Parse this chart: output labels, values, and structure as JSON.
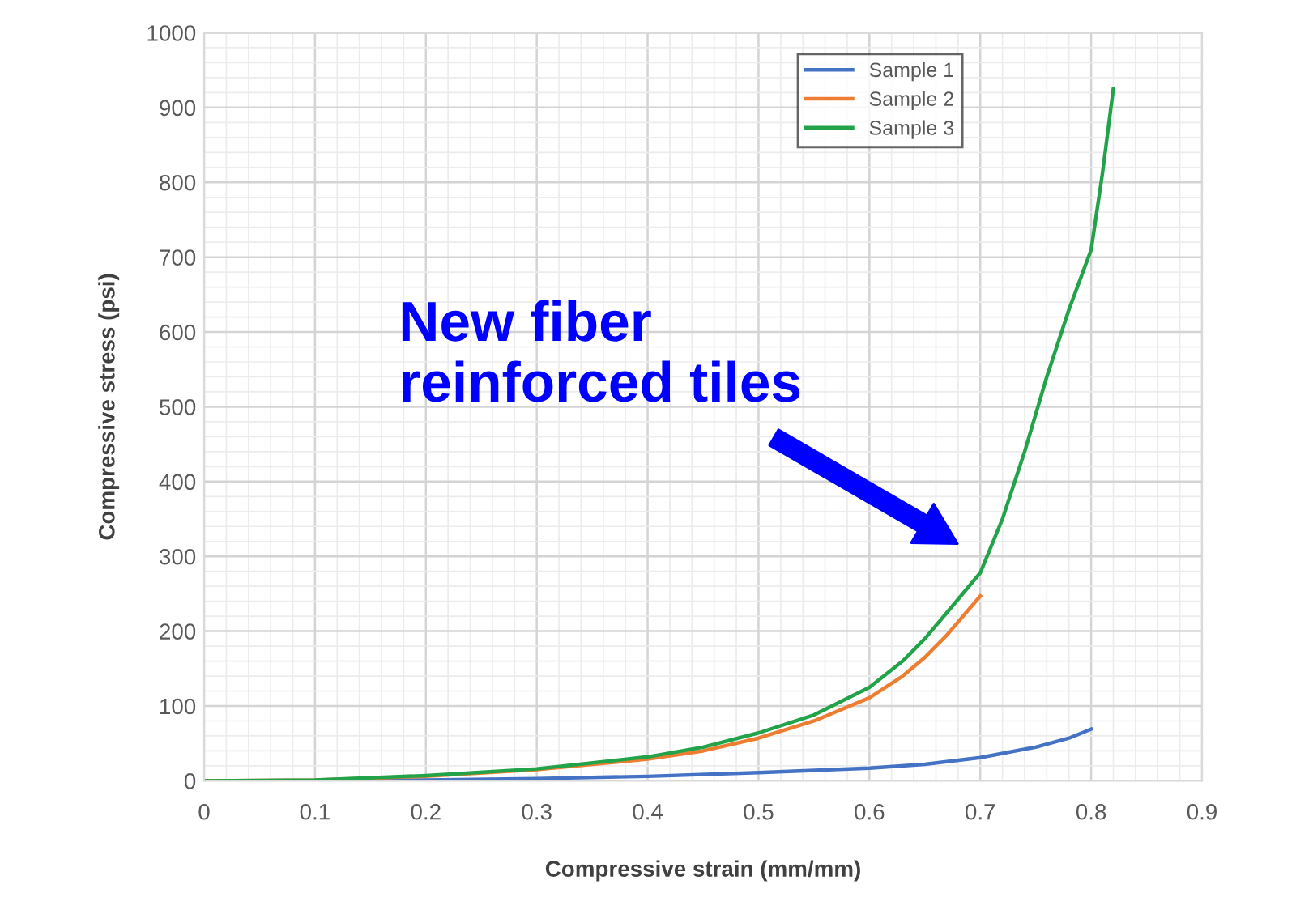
{
  "chart_data": {
    "type": "line",
    "xlabel": "Compressive strain (mm/mm)",
    "ylabel": "Compressive stress (psi)",
    "xlim": [
      0,
      0.9
    ],
    "xticks": [
      0,
      0.1,
      0.2,
      0.3,
      0.4,
      0.5,
      0.6,
      0.7,
      0.8,
      0.9
    ],
    "ylim": [
      0,
      1000
    ],
    "yticks": [
      0,
      100,
      200,
      300,
      400,
      500,
      600,
      700,
      800,
      900,
      1000
    ],
    "grid": true,
    "legend": "top right",
    "marker": "none",
    "line_style": "solid",
    "annotations": [
      "New fiber\nreinforced tiles"
    ],
    "series": [
      {
        "name": "Sample 1",
        "color": "#4472c4",
        "x": [
          0,
          0.1,
          0.2,
          0.3,
          0.4,
          0.5,
          0.6,
          0.65,
          0.7,
          0.75,
          0.78,
          0.8
        ],
        "values": [
          0,
          0,
          1,
          3,
          6,
          11,
          17,
          22,
          31,
          45,
          57,
          69
        ]
      },
      {
        "name": "Sample 2",
        "color": "#ed7d31",
        "x": [
          0,
          0.1,
          0.2,
          0.3,
          0.4,
          0.45,
          0.5,
          0.55,
          0.6,
          0.63,
          0.65,
          0.67,
          0.7
        ],
        "values": [
          0,
          1,
          6,
          15,
          29,
          40,
          57,
          80,
          111,
          140,
          165,
          195,
          247
        ]
      },
      {
        "name": "Sample 3",
        "color": "#22a34a",
        "x": [
          0,
          0.1,
          0.2,
          0.3,
          0.4,
          0.45,
          0.5,
          0.55,
          0.6,
          0.63,
          0.65,
          0.67,
          0.7,
          0.72,
          0.74,
          0.76,
          0.78,
          0.8,
          0.81,
          0.82
        ],
        "values": [
          0,
          1,
          7,
          16,
          32,
          45,
          64,
          88,
          125,
          160,
          190,
          225,
          278,
          350,
          440,
          540,
          630,
          710,
          810,
          925
        ]
      }
    ]
  }
}
